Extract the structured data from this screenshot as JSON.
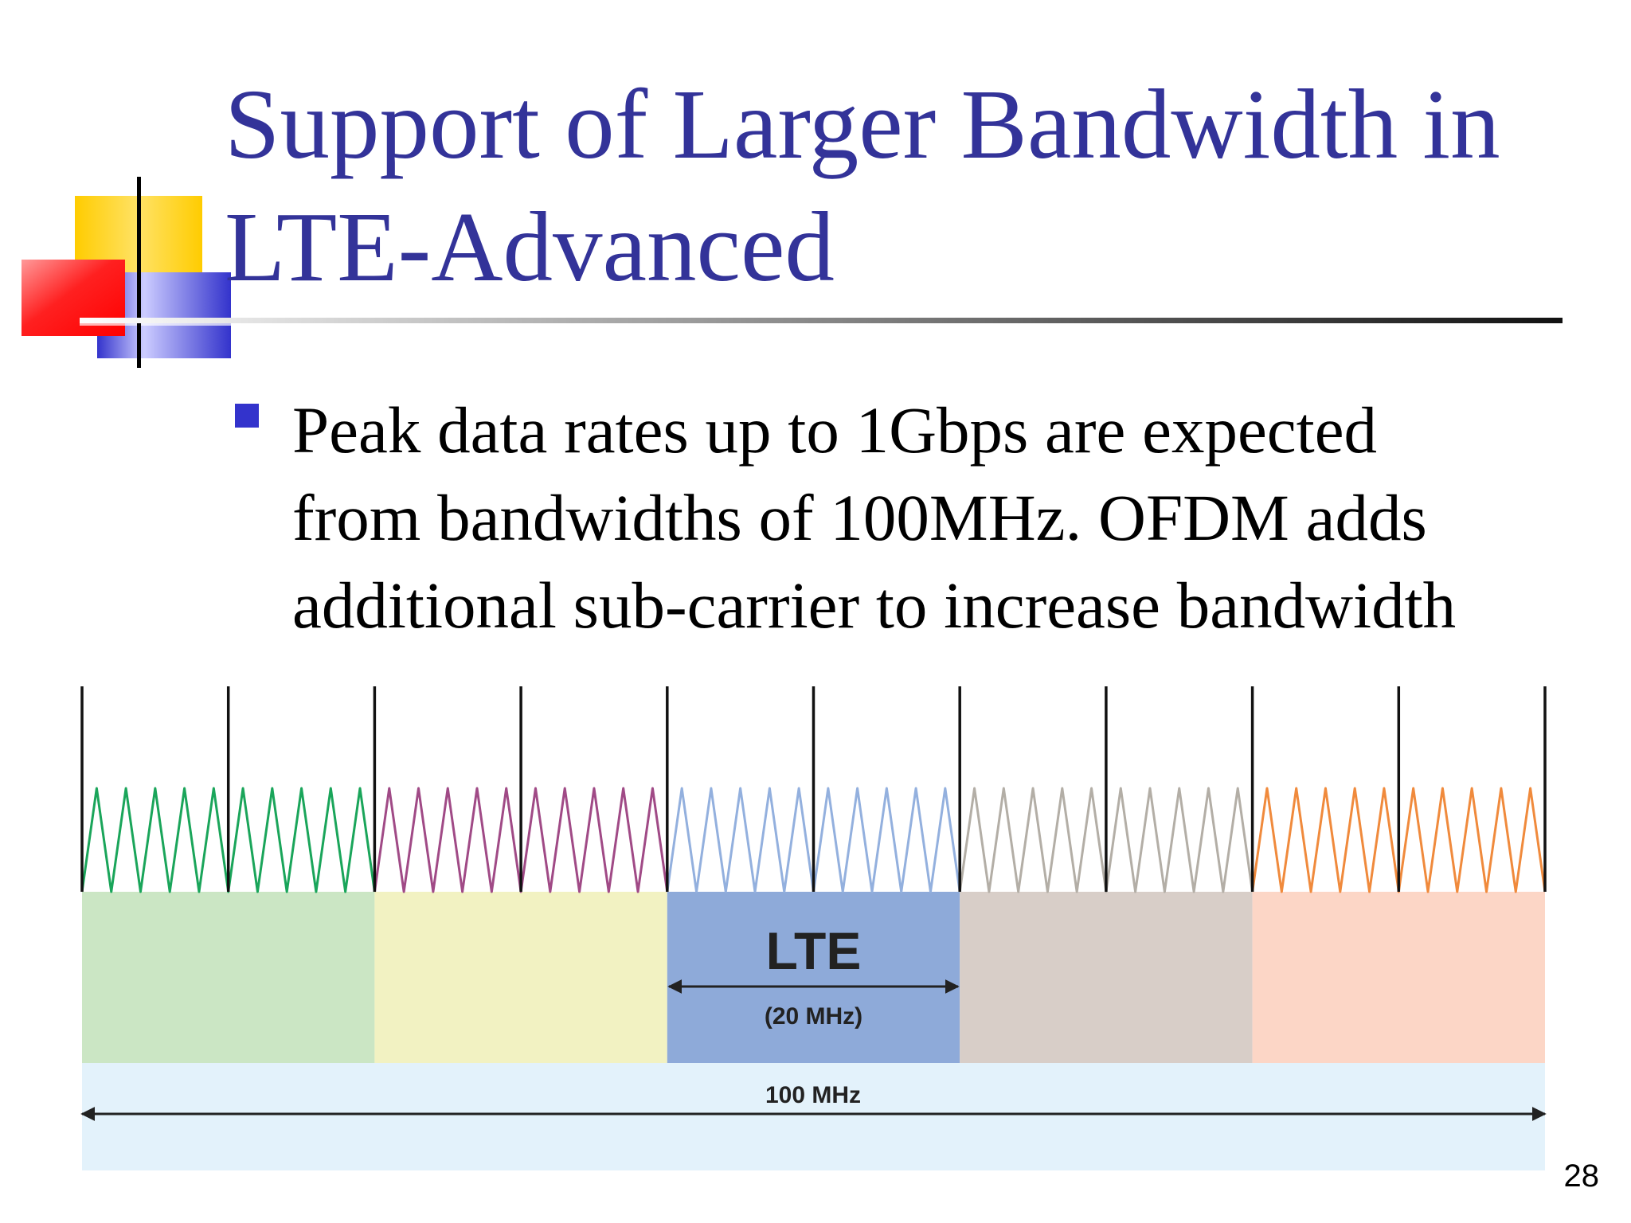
{
  "slide": {
    "title_lines": [
      "Support of Larger Bandwidth in",
      "LTE-Advanced"
    ],
    "bullet_lines": [
      "Peak data rates up to 1Gbps are expected",
      "from bandwidths of 100MHz. OFDM adds",
      "additional sub-carrier to increase bandwidth"
    ],
    "page_number": "28"
  },
  "diagram": {
    "carriers": [
      {
        "wave_color": "#1aa55a",
        "block_color": "#cbe6c4"
      },
      {
        "wave_color": "#a04a86",
        "block_color": "#f2f2c2"
      },
      {
        "wave_color": "#93b0de",
        "block_color": "#8eaad9",
        "label": "LTE",
        "width_label": "(20 MHz)"
      },
      {
        "wave_color": "#b3aea6",
        "block_color": "#d8cec8"
      },
      {
        "wave_color": "#f08a3c",
        "block_color": "#fcd6c6"
      }
    ],
    "total_label": "100 MHz",
    "total_band_color": "#e3f2fb",
    "divider_count": 11,
    "peaks_per_carrier": 10
  },
  "colors": {
    "title": "#333399",
    "bullet": "#3333cc",
    "logo_yellow": "#ffcc00",
    "logo_red": "#ff0000",
    "logo_blue": "#3333cc"
  }
}
